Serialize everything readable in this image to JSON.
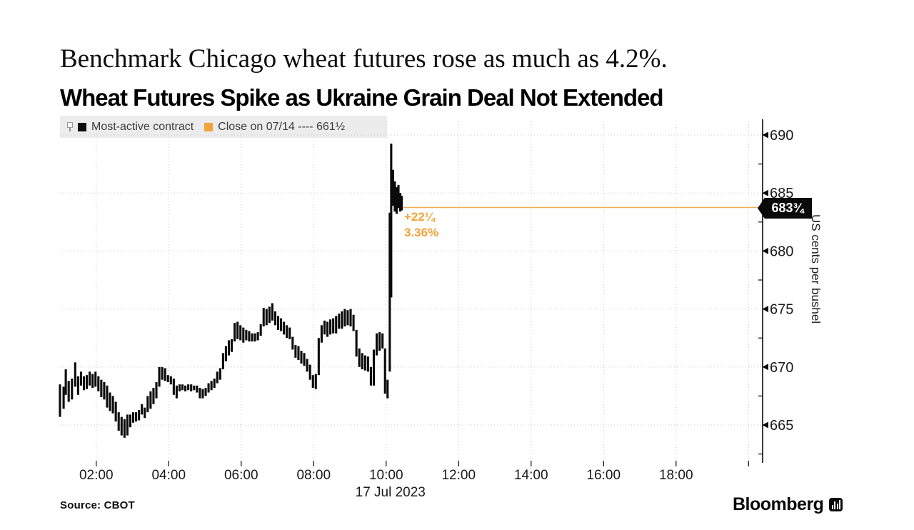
{
  "article": {
    "headline": "Benchmark Chicago wheat futures rose as much as 4.2%."
  },
  "chart": {
    "title": "Wheat Futures Spike as Ukraine Grain Deal Not Extended",
    "legend": {
      "items": [
        {
          "label": "Most-active contract",
          "color": "#0b0b0b"
        },
        {
          "label": "Close on 07/14 ---- 661½",
          "color": "#f2a33b"
        }
      ]
    }
  },
  "footer": {
    "source": "Source: CBOT",
    "brand": "Bloomberg"
  },
  "colors": {
    "accent_orange": "#f2a33b",
    "close_line_orange": "#eeab50",
    "bar_black": "#0a0a0a",
    "grid_gray": "#c9c9c9",
    "legend_bg": "#ececec"
  },
  "chart_data": {
    "type": "hilo-bar",
    "title": "Wheat Futures Spike as Ukraine Grain Deal Not Extended",
    "series_name": "Most-active contract",
    "ylabel": "US cents per bushel",
    "date_label": "17 Jul 2023",
    "x_unit": "hour_of_day",
    "xlim": [
      1.0,
      20.4
    ],
    "ylim": [
      661.7,
      691.3
    ],
    "grid": "dotted",
    "x_tick_hours": [
      2,
      4,
      6,
      8,
      10,
      12,
      14,
      16,
      18,
      20
    ],
    "x_tick_labels": [
      "02:00",
      "04:00",
      "06:00",
      "08:00",
      "10:00",
      "12:00",
      "14:00",
      "16:00",
      "18:00",
      ""
    ],
    "y_ticks": [
      665,
      670,
      675,
      680,
      685,
      690
    ],
    "y_minor_ticks": [
      662.5,
      667.5,
      672.5,
      677.5,
      682.5,
      687.5
    ],
    "close_line": {
      "value": 683.75,
      "label": "683¾",
      "start_hour": 10.47,
      "prev_close": 661.5
    },
    "change": {
      "amount": "+22¼",
      "percent": "3.36%"
    },
    "session_high": 689.25,
    "session_low": 663.9,
    "bars": [
      [
        1.0,
        665.7,
        668.5
      ],
      [
        1.1,
        666.4,
        668.3
      ],
      [
        1.16,
        667.6,
        669.8
      ],
      [
        1.24,
        667.0,
        668.8
      ],
      [
        1.33,
        667.2,
        669.0
      ],
      [
        1.42,
        668.3,
        670.4
      ],
      [
        1.5,
        667.6,
        669.2
      ],
      [
        1.58,
        668.4,
        669.6
      ],
      [
        1.66,
        668.0,
        669.2
      ],
      [
        1.74,
        668.1,
        669.3
      ],
      [
        1.82,
        668.4,
        669.6
      ],
      [
        1.9,
        668.2,
        669.4
      ],
      [
        1.98,
        668.3,
        669.6
      ],
      [
        2.06,
        667.9,
        669.2
      ],
      [
        2.14,
        667.4,
        668.9
      ],
      [
        2.22,
        667.2,
        668.7
      ],
      [
        2.3,
        666.5,
        668.4
      ],
      [
        2.38,
        666.2,
        667.8
      ],
      [
        2.46,
        666.0,
        667.5
      ],
      [
        2.54,
        665.3,
        667.0
      ],
      [
        2.62,
        664.5,
        666.1
      ],
      [
        2.7,
        664.1,
        665.7
      ],
      [
        2.78,
        663.9,
        665.5
      ],
      [
        2.86,
        664.1,
        665.9
      ],
      [
        2.94,
        664.8,
        665.9
      ],
      [
        3.02,
        665.2,
        666.1
      ],
      [
        3.1,
        665.3,
        666.1
      ],
      [
        3.18,
        665.4,
        666.3
      ],
      [
        3.26,
        665.9,
        666.8
      ],
      [
        3.34,
        665.6,
        666.5
      ],
      [
        3.42,
        666.1,
        667.5
      ],
      [
        3.5,
        666.4,
        667.9
      ],
      [
        3.58,
        666.8,
        668.2
      ],
      [
        3.66,
        667.3,
        668.7
      ],
      [
        3.74,
        668.3,
        670.0
      ],
      [
        3.82,
        668.9,
        670.0
      ],
      [
        3.9,
        668.8,
        669.9
      ],
      [
        3.98,
        668.7,
        669.3
      ],
      [
        4.06,
        668.5,
        669.2
      ],
      [
        4.14,
        667.6,
        669.0
      ],
      [
        4.22,
        667.3,
        668.4
      ],
      [
        4.3,
        667.9,
        668.5
      ],
      [
        4.38,
        668.0,
        668.5
      ],
      [
        4.46,
        667.9,
        668.4
      ],
      [
        4.54,
        668.0,
        668.5
      ],
      [
        4.62,
        667.9,
        668.5
      ],
      [
        4.7,
        668.0,
        668.4
      ],
      [
        4.78,
        667.8,
        668.4
      ],
      [
        4.86,
        667.3,
        668.2
      ],
      [
        4.94,
        667.3,
        668.1
      ],
      [
        5.02,
        667.5,
        668.2
      ],
      [
        5.1,
        667.8,
        668.6
      ],
      [
        5.18,
        668.0,
        668.8
      ],
      [
        5.26,
        668.2,
        669.0
      ],
      [
        5.34,
        668.6,
        669.6
      ],
      [
        5.42,
        668.9,
        669.9
      ],
      [
        5.5,
        669.8,
        671.2
      ],
      [
        5.58,
        670.5,
        671.8
      ],
      [
        5.66,
        671.0,
        672.3
      ],
      [
        5.74,
        671.3,
        672.4
      ],
      [
        5.82,
        672.2,
        673.8
      ],
      [
        5.9,
        672.4,
        673.9
      ],
      [
        5.98,
        672.3,
        673.6
      ],
      [
        6.06,
        672.1,
        673.4
      ],
      [
        6.14,
        672.3,
        673.2
      ],
      [
        6.22,
        672.2,
        673.1
      ],
      [
        6.3,
        672.2,
        672.9
      ],
      [
        6.38,
        672.2,
        672.9
      ],
      [
        6.46,
        672.3,
        673.0
      ],
      [
        6.54,
        672.7,
        673.7
      ],
      [
        6.62,
        673.5,
        675.1
      ],
      [
        6.7,
        673.6,
        675.0
      ],
      [
        6.78,
        673.8,
        675.2
      ],
      [
        6.86,
        674.0,
        675.5
      ],
      [
        6.94,
        673.6,
        674.8
      ],
      [
        7.02,
        673.2,
        674.4
      ],
      [
        7.1,
        673.1,
        674.2
      ],
      [
        7.18,
        672.8,
        673.9
      ],
      [
        7.26,
        672.5,
        673.6
      ],
      [
        7.34,
        672.4,
        673.4
      ],
      [
        7.42,
        671.5,
        672.6
      ],
      [
        7.5,
        670.8,
        671.9
      ],
      [
        7.58,
        670.6,
        671.8
      ],
      [
        7.66,
        670.3,
        671.4
      ],
      [
        7.74,
        670.1,
        671.2
      ],
      [
        7.82,
        669.6,
        670.7
      ],
      [
        7.9,
        668.9,
        670.2
      ],
      [
        7.98,
        668.2,
        669.3
      ],
      [
        8.06,
        668.1,
        669.4
      ],
      [
        8.14,
        669.3,
        672.5
      ],
      [
        8.22,
        672.1,
        673.6
      ],
      [
        8.3,
        672.8,
        674.0
      ],
      [
        8.38,
        672.6,
        673.9
      ],
      [
        8.46,
        672.8,
        674.1
      ],
      [
        8.54,
        672.9,
        674.2
      ],
      [
        8.62,
        672.9,
        674.4
      ],
      [
        8.7,
        673.3,
        674.6
      ],
      [
        8.78,
        673.3,
        674.8
      ],
      [
        8.86,
        673.5,
        675.0
      ],
      [
        8.94,
        673.6,
        674.9
      ],
      [
        9.02,
        673.5,
        675.0
      ],
      [
        9.1,
        673.1,
        674.5
      ],
      [
        9.18,
        670.9,
        673.2
      ],
      [
        9.26,
        670.0,
        671.6
      ],
      [
        9.34,
        669.8,
        671.2
      ],
      [
        9.42,
        669.7,
        671.0
      ],
      [
        9.5,
        669.6,
        670.9
      ],
      [
        9.58,
        668.4,
        670.0
      ],
      [
        9.66,
        668.4,
        671.5
      ],
      [
        9.74,
        671.0,
        672.9
      ],
      [
        9.82,
        671.4,
        673.0
      ],
      [
        9.9,
        671.6,
        672.9
      ],
      [
        9.97,
        667.7,
        671.6
      ],
      [
        10.04,
        667.3,
        668.9
      ],
      [
        10.1,
        669.6,
        683.3
      ],
      [
        10.14,
        676.0,
        689.25
      ],
      [
        10.19,
        683.9,
        687.0
      ],
      [
        10.24,
        683.4,
        686.0
      ],
      [
        10.29,
        683.2,
        685.5
      ],
      [
        10.34,
        683.7,
        685.7
      ],
      [
        10.39,
        683.4,
        685.0
      ],
      [
        10.43,
        683.5,
        684.75
      ]
    ]
  }
}
